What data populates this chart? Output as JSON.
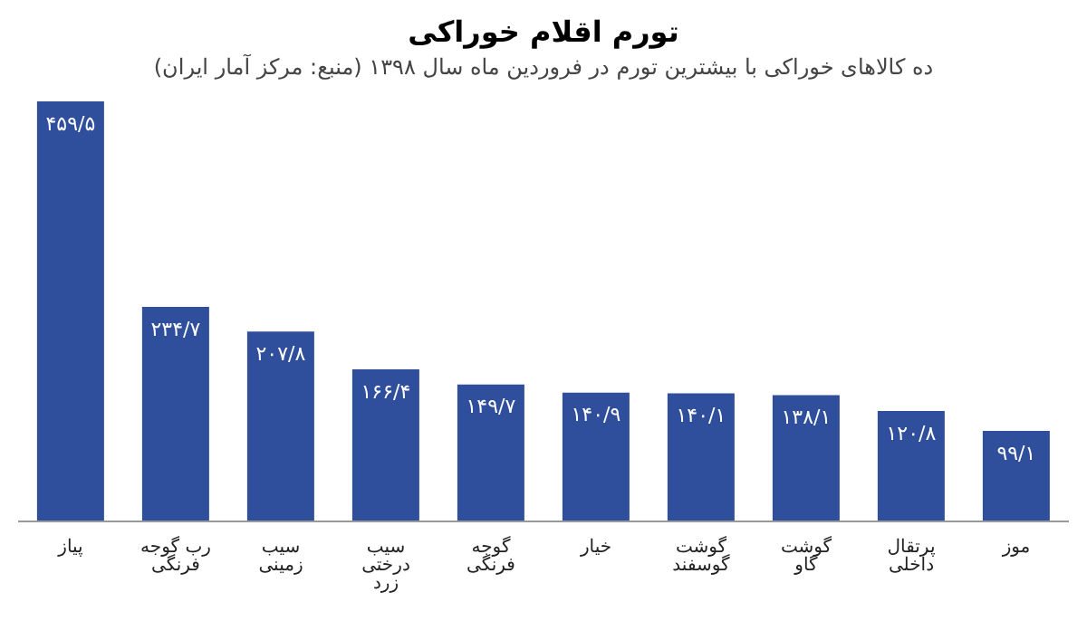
{
  "chart_data": {
    "type": "bar",
    "title": "تورم اقلام خوراکی",
    "subtitle": "ده کالاهای خوراکی با بیشترین تورم در فروردین ماه سال ۱۳۹۸ (منبع: مرکز آمار ایران)",
    "categories": [
      "پیاز",
      "رب گوجه فرنگی",
      "سیب زمینی",
      "سیب درختی زرد",
      "گوجه فرنگی",
      "خیار",
      "گوشت گوسفند",
      "گوشت گاو",
      "پرتقال داخلی",
      "موز"
    ],
    "values": [
      459.5,
      234.7,
      207.8,
      166.4,
      149.7,
      140.9,
      140.1,
      138.1,
      120.8,
      99.1
    ],
    "value_labels": [
      "۴۵۹/۵",
      "۲۳۴/۷",
      "۲۰۷/۸",
      "۱۶۶/۴",
      "۱۴۹/۷",
      "۱۴۰/۹",
      "۱۴۰/۱",
      "۱۳۸/۱",
      "۱۲۰/۸",
      "۹۹/۱"
    ],
    "color": "#2f4e9c"
  }
}
